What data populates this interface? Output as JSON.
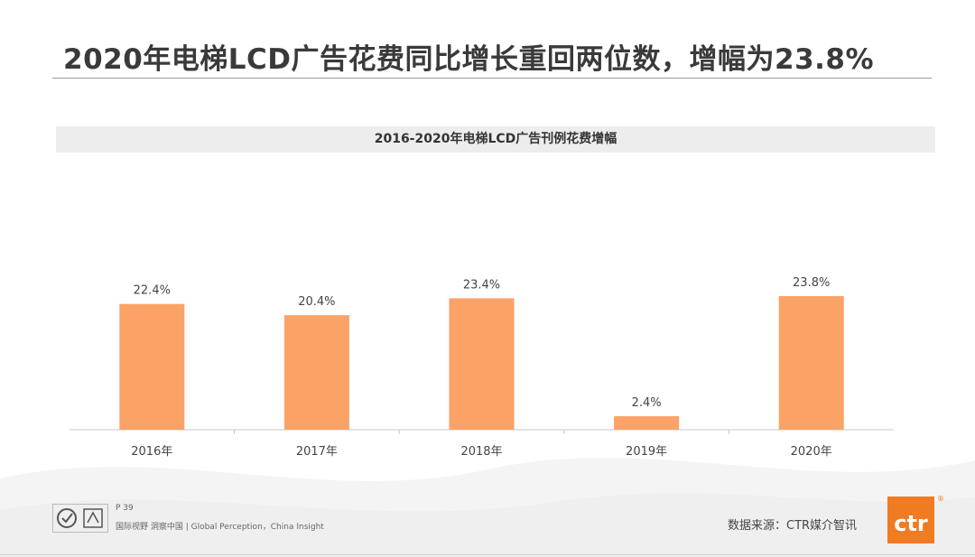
{
  "page": {
    "title": "2020年电梯LCD广告花费同比增长重回两位数，增幅为23.8%"
  },
  "chart_data": {
    "type": "bar",
    "title": "2016-2020年电梯LCD广告刊例花费增幅",
    "categories": [
      "2016年",
      "2017年",
      "2018年",
      "2019年",
      "2020年"
    ],
    "values": [
      22.4,
      20.4,
      23.4,
      2.4,
      23.8
    ],
    "value_labels": [
      "22.4%",
      "20.4%",
      "23.4%",
      "2.4%",
      "23.8%"
    ],
    "xlabel": "",
    "ylabel": "",
    "ylim": [
      0,
      25
    ],
    "grid": false,
    "legend": "none",
    "bar_color": "#fba266"
  },
  "footer": {
    "page_number": "P 39",
    "tagline": "国际视野  洞察中国 | Global Perception，China Insight",
    "source": "数据来源：CTR媒介智讯",
    "brand": "ctr",
    "reg_mark": "®"
  }
}
